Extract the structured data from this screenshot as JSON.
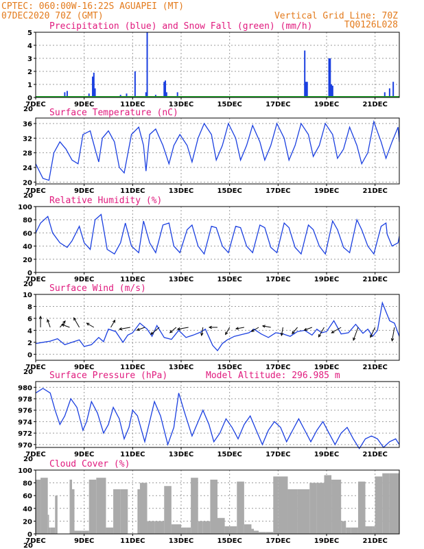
{
  "header": {
    "line1_left": "CPTEC:  060:00W-16:22S  AGUAPEI (MT)",
    "line2_left": "07DEC2020 70Z (GMT)",
    "line1_right": "Vertical Grid Line: 70Z",
    "line2_right": "TQ0126L028"
  },
  "colors": {
    "header": "#e37a1b",
    "title": "#e0197d",
    "line": "#1a3fe0",
    "snow": "#22a32a",
    "cloud": "#aaaaaa",
    "wind_arrow": "#000000"
  },
  "x_axis": {
    "start_day": 7,
    "end_day": 22,
    "tick_labels": [
      "7DEC",
      "9DEC",
      "11DEC",
      "13DEC",
      "15DEC",
      "17DEC",
      "19DEC",
      "21DEC"
    ],
    "tick_days": [
      7,
      9,
      11,
      13,
      15,
      17,
      19,
      21
    ],
    "year_label": "20"
  },
  "chart_data": [
    {
      "id": "precip",
      "type": "bar",
      "title": "Precipitation (blue) and Snow Fall (green) (mm/h)",
      "ylabel": "mm/h",
      "ylim": [
        0,
        5
      ],
      "yticks": [
        0,
        1,
        2,
        3,
        4,
        5
      ],
      "grid": true,
      "series": [
        {
          "name": "Precipitation",
          "color": "#1a3fe0",
          "points": [
            [
              8.2,
              0.4
            ],
            [
              8.3,
              0.5
            ],
            [
              9.2,
              0.3
            ],
            [
              9.35,
              1.6
            ],
            [
              9.4,
              1.9
            ],
            [
              9.45,
              0.7
            ],
            [
              10.5,
              0.2
            ],
            [
              10.75,
              0.3
            ],
            [
              11.1,
              2.0
            ],
            [
              11.55,
              0.4
            ],
            [
              11.6,
              5.0
            ],
            [
              11.95,
              0.2
            ],
            [
              12.3,
              1.2
            ],
            [
              12.35,
              1.3
            ],
            [
              12.4,
              0.4
            ],
            [
              12.85,
              0.4
            ],
            [
              18.1,
              3.6
            ],
            [
              18.15,
              1.2
            ],
            [
              18.2,
              1.2
            ],
            [
              19.1,
              3.0
            ],
            [
              19.15,
              3.0
            ],
            [
              19.2,
              1.0
            ],
            [
              19.25,
              0.9
            ],
            [
              21.4,
              0.4
            ],
            [
              21.6,
              0.7
            ],
            [
              21.75,
              1.2
            ]
          ]
        }
      ]
    },
    {
      "id": "temperature",
      "type": "line",
      "title": "Surface Temperature (nC)",
      "ylim": [
        19.5,
        37.5
      ],
      "yticks": [
        20,
        24,
        28,
        32,
        36
      ],
      "grid": true,
      "series": [
        {
          "name": "Temperature",
          "x": [
            7.0,
            7.3,
            7.55,
            7.75,
            8.0,
            8.25,
            8.5,
            8.75,
            8.95,
            9.25,
            9.45,
            9.6,
            9.75,
            10.0,
            10.25,
            10.45,
            10.65,
            10.95,
            11.25,
            11.45,
            11.55,
            11.7,
            11.95,
            12.25,
            12.5,
            12.7,
            12.95,
            13.25,
            13.45,
            13.7,
            13.95,
            14.25,
            14.45,
            14.7,
            14.95,
            15.25,
            15.45,
            15.7,
            15.95,
            16.25,
            16.45,
            16.7,
            16.95,
            17.25,
            17.45,
            17.7,
            17.95,
            18.25,
            18.45,
            18.7,
            18.95,
            19.25,
            19.45,
            19.7,
            19.95,
            20.25,
            20.45,
            20.7,
            20.95,
            21.25,
            21.45,
            21.7,
            21.95,
            22.0
          ],
          "y": [
            25.0,
            21.0,
            20.5,
            28.0,
            31.0,
            29.0,
            26.0,
            25.0,
            33.0,
            34.0,
            29.0,
            25.5,
            32.0,
            34.0,
            31.0,
            24.0,
            22.5,
            33.0,
            35.0,
            30.0,
            23.0,
            33.0,
            34.5,
            30.0,
            25.0,
            30.0,
            33.0,
            30.0,
            25.5,
            32.0,
            36.0,
            33.0,
            26.0,
            30.0,
            36.0,
            32.0,
            26.0,
            30.0,
            35.5,
            31.0,
            26.0,
            30.0,
            36.0,
            32.0,
            26.0,
            30.0,
            36.0,
            33.0,
            27.0,
            30.0,
            36.0,
            33.0,
            26.5,
            29.0,
            35.0,
            30.0,
            25.0,
            28.0,
            36.5,
            31.0,
            26.5,
            31.0,
            35.0,
            31.0
          ]
        }
      ]
    },
    {
      "id": "humidity",
      "type": "line",
      "title": "Relative Humidity (%)",
      "ylim": [
        0,
        100
      ],
      "yticks": [
        0,
        20,
        40,
        60,
        80,
        100
      ],
      "grid": true,
      "series": [
        {
          "name": "Relative Humidity",
          "x": [
            7.0,
            7.2,
            7.5,
            7.7,
            8.0,
            8.3,
            8.5,
            8.8,
            9.0,
            9.25,
            9.45,
            9.7,
            9.95,
            10.25,
            10.5,
            10.7,
            10.95,
            11.25,
            11.45,
            11.7,
            11.95,
            12.25,
            12.5,
            12.7,
            12.95,
            13.25,
            13.45,
            13.7,
            13.95,
            14.25,
            14.45,
            14.7,
            14.95,
            15.25,
            15.45,
            15.7,
            15.95,
            16.25,
            16.45,
            16.7,
            16.95,
            17.25,
            17.45,
            17.7,
            17.95,
            18.25,
            18.45,
            18.7,
            18.95,
            19.25,
            19.45,
            19.7,
            19.95,
            20.25,
            20.45,
            20.7,
            20.95,
            21.25,
            21.45,
            21.5,
            21.7,
            21.95,
            22.0
          ],
          "y": [
            60.0,
            75.0,
            85.0,
            60.0,
            45.0,
            38.0,
            48.0,
            70.0,
            45.0,
            35.0,
            80.0,
            88.0,
            35.0,
            28.0,
            45.0,
            75.0,
            40.0,
            30.0,
            78.0,
            45.0,
            30.0,
            72.0,
            75.0,
            40.0,
            30.0,
            65.0,
            72.0,
            40.0,
            28.0,
            70.0,
            68.0,
            40.0,
            30.0,
            70.0,
            68.0,
            40.0,
            30.0,
            72.0,
            68.0,
            38.0,
            30.0,
            75.0,
            68.0,
            38.0,
            28.0,
            72.0,
            65.0,
            40.0,
            28.0,
            78.0,
            65.0,
            38.0,
            30.0,
            80.0,
            65.0,
            40.0,
            28.0,
            70.0,
            75.0,
            58.0,
            40.0,
            45.0,
            55.0
          ]
        }
      ]
    },
    {
      "id": "wind",
      "type": "line",
      "title": "Surface Wind (m/s)",
      "ylim": [
        -1,
        10
      ],
      "yticks": [
        0,
        2,
        4,
        6,
        8,
        10
      ],
      "grid": true,
      "series": [
        {
          "name": "Wind speed",
          "x": [
            7.0,
            7.3,
            7.6,
            7.9,
            8.2,
            8.5,
            8.8,
            9.0,
            9.3,
            9.6,
            9.8,
            10.0,
            10.3,
            10.6,
            10.8,
            11.0,
            11.3,
            11.6,
            11.8,
            12.0,
            12.3,
            12.6,
            12.9,
            13.2,
            13.5,
            13.8,
            14.0,
            14.3,
            14.5,
            14.7,
            14.9,
            15.2,
            15.5,
            15.8,
            16.0,
            16.3,
            16.6,
            16.9,
            17.2,
            17.5,
            17.8,
            18.1,
            18.4,
            18.6,
            18.8,
            19.0,
            19.3,
            19.6,
            19.9,
            20.2,
            20.5,
            20.7,
            20.9,
            21.1,
            21.3,
            21.6,
            21.8,
            22.0
          ],
          "y": [
            1.8,
            2.0,
            2.2,
            2.6,
            1.6,
            2.0,
            2.4,
            1.3,
            1.6,
            2.8,
            2.1,
            4.2,
            3.8,
            2.0,
            3.2,
            3.6,
            5.2,
            4.2,
            3.0,
            4.8,
            2.8,
            2.5,
            4.0,
            2.8,
            3.2,
            3.7,
            4.2,
            1.5,
            0.6,
            1.8,
            2.4,
            3.0,
            3.3,
            3.6,
            4.2,
            3.4,
            2.8,
            3.6,
            3.4,
            3.0,
            3.8,
            4.0,
            3.2,
            4.2,
            3.6,
            3.8,
            5.6,
            3.4,
            3.6,
            5.0,
            3.5,
            4.2,
            3.0,
            4.0,
            8.6,
            5.6,
            5.2,
            3.0
          ]
        },
        {
          "name": "Wind vectors",
          "type": "quiver",
          "points": [
            [
              7.2,
              270,
              4
            ],
            [
              7.6,
              250,
              3
            ],
            [
              8.0,
              310,
              3
            ],
            [
              8.4,
              200,
              3
            ],
            [
              8.8,
              240,
              4
            ],
            [
              9.4,
              210,
              3
            ],
            [
              10.1,
              300,
              3
            ],
            [
              10.9,
              170,
              4
            ],
            [
              11.5,
              160,
              3
            ],
            [
              12.1,
              140,
              4
            ],
            [
              12.8,
              140,
              3
            ],
            [
              13.3,
              170,
              4
            ],
            [
              13.9,
              100,
              3
            ],
            [
              14.5,
              180,
              3
            ],
            [
              15.0,
              120,
              3
            ],
            [
              15.6,
              170,
              3
            ],
            [
              16.2,
              150,
              3
            ],
            [
              16.7,
              190,
              3
            ],
            [
              17.2,
              100,
              3
            ],
            [
              17.8,
              130,
              3
            ],
            [
              18.4,
              160,
              3
            ],
            [
              18.9,
              120,
              4
            ],
            [
              19.6,
              150,
              4
            ],
            [
              20.3,
              110,
              5
            ],
            [
              21.0,
              115,
              4
            ],
            [
              21.8,
              100,
              5
            ]
          ]
        }
      ]
    },
    {
      "id": "pressure",
      "type": "line",
      "title": "Surface Pressure (hPa)",
      "annotation": "Model Altitude: 296.985 m",
      "ylim": [
        969.5,
        981
      ],
      "yticks": [
        970,
        972,
        974,
        976,
        978,
        980
      ],
      "grid": true,
      "series": [
        {
          "name": "Surface Pressure",
          "x": [
            7.0,
            7.3,
            7.6,
            7.8,
            8.0,
            8.2,
            8.45,
            8.7,
            8.95,
            9.1,
            9.3,
            9.55,
            9.8,
            10.0,
            10.2,
            10.45,
            10.65,
            10.85,
            11.0,
            11.2,
            11.5,
            11.7,
            11.9,
            12.15,
            12.45,
            12.7,
            12.9,
            13.15,
            13.45,
            13.65,
            13.9,
            14.15,
            14.35,
            14.6,
            14.85,
            15.1,
            15.35,
            15.6,
            15.85,
            16.1,
            16.35,
            16.6,
            16.85,
            17.1,
            17.35,
            17.6,
            17.85,
            18.1,
            18.35,
            18.6,
            18.85,
            19.1,
            19.35,
            19.6,
            19.85,
            20.1,
            20.35,
            20.6,
            20.85,
            21.1,
            21.35,
            21.6,
            21.85,
            22.0
          ],
          "y": [
            979.0,
            979.8,
            979.0,
            976.0,
            973.5,
            975.0,
            978.0,
            976.5,
            972.5,
            974.0,
            977.5,
            975.5,
            972.0,
            973.5,
            976.5,
            974.5,
            971.0,
            973.0,
            976.0,
            975.0,
            970.5,
            974.0,
            977.5,
            975.0,
            970.0,
            973.0,
            979.0,
            975.5,
            971.5,
            973.5,
            976.0,
            973.5,
            970.5,
            972.0,
            974.5,
            973.0,
            971.0,
            973.5,
            975.0,
            972.5,
            970.0,
            972.5,
            974.0,
            973.0,
            970.5,
            972.5,
            974.5,
            972.5,
            970.5,
            972.5,
            974.0,
            972.0,
            970.0,
            972.0,
            973.0,
            971.0,
            969.3,
            971.0,
            971.5,
            971.0,
            969.5,
            970.5,
            971.0,
            970.0
          ]
        }
      ]
    },
    {
      "id": "cloud",
      "type": "area",
      "title": "Cloud Cover (%)",
      "ylim": [
        0,
        100
      ],
      "yticks": [
        0,
        20,
        40,
        60,
        80,
        100
      ],
      "grid": true,
      "series": [
        {
          "name": "Cloud Cover",
          "x": [
            7.0,
            7.2,
            7.5,
            7.55,
            7.6,
            7.8,
            7.9,
            8.0,
            8.4,
            8.5,
            8.6,
            8.9,
            9.2,
            9.5,
            9.9,
            10.1,
            10.2,
            10.5,
            10.8,
            10.82,
            11.1,
            11.2,
            11.3,
            11.6,
            11.9,
            12.3,
            12.6,
            13.0,
            13.2,
            13.4,
            13.7,
            13.9,
            14.2,
            14.5,
            14.8,
            15.0,
            15.3,
            15.6,
            15.9,
            16.0,
            16.2,
            16.5,
            16.8,
            17.0,
            17.4,
            17.8,
            18.3,
            18.6,
            18.9,
            19.2,
            19.6,
            19.8,
            20.0,
            20.3,
            20.6,
            20.9,
            21.0,
            21.3,
            21.6,
            22.0
          ],
          "y": [
            85.0,
            90.0,
            88.0,
            30.0,
            10.0,
            60.0,
            80.0,
            0.0,
            85.0,
            90.0,
            70.0,
            5.0,
            85.0,
            92.0,
            88.0,
            10.0,
            75.0,
            70.0,
            85.0,
            0.0,
            0.0,
            70.0,
            95.0,
            80.0,
            20.0,
            90.0,
            75.0,
            15.0,
            10.0,
            88.0,
            92.0,
            20.0,
            90.0,
            85.0,
            25.0,
            12.0,
            85.0,
            82.0,
            15.0,
            8.0,
            5.0,
            3.0,
            90.0,
            92.0,
            90.0,
            70.0,
            95.0,
            80.0,
            95.0,
            92.0,
            85.0,
            20.0,
            10.0,
            82.0,
            88.0,
            12.0,
            90.0,
            98.0,
            95.0,
            97.0
          ]
        }
      ]
    }
  ]
}
